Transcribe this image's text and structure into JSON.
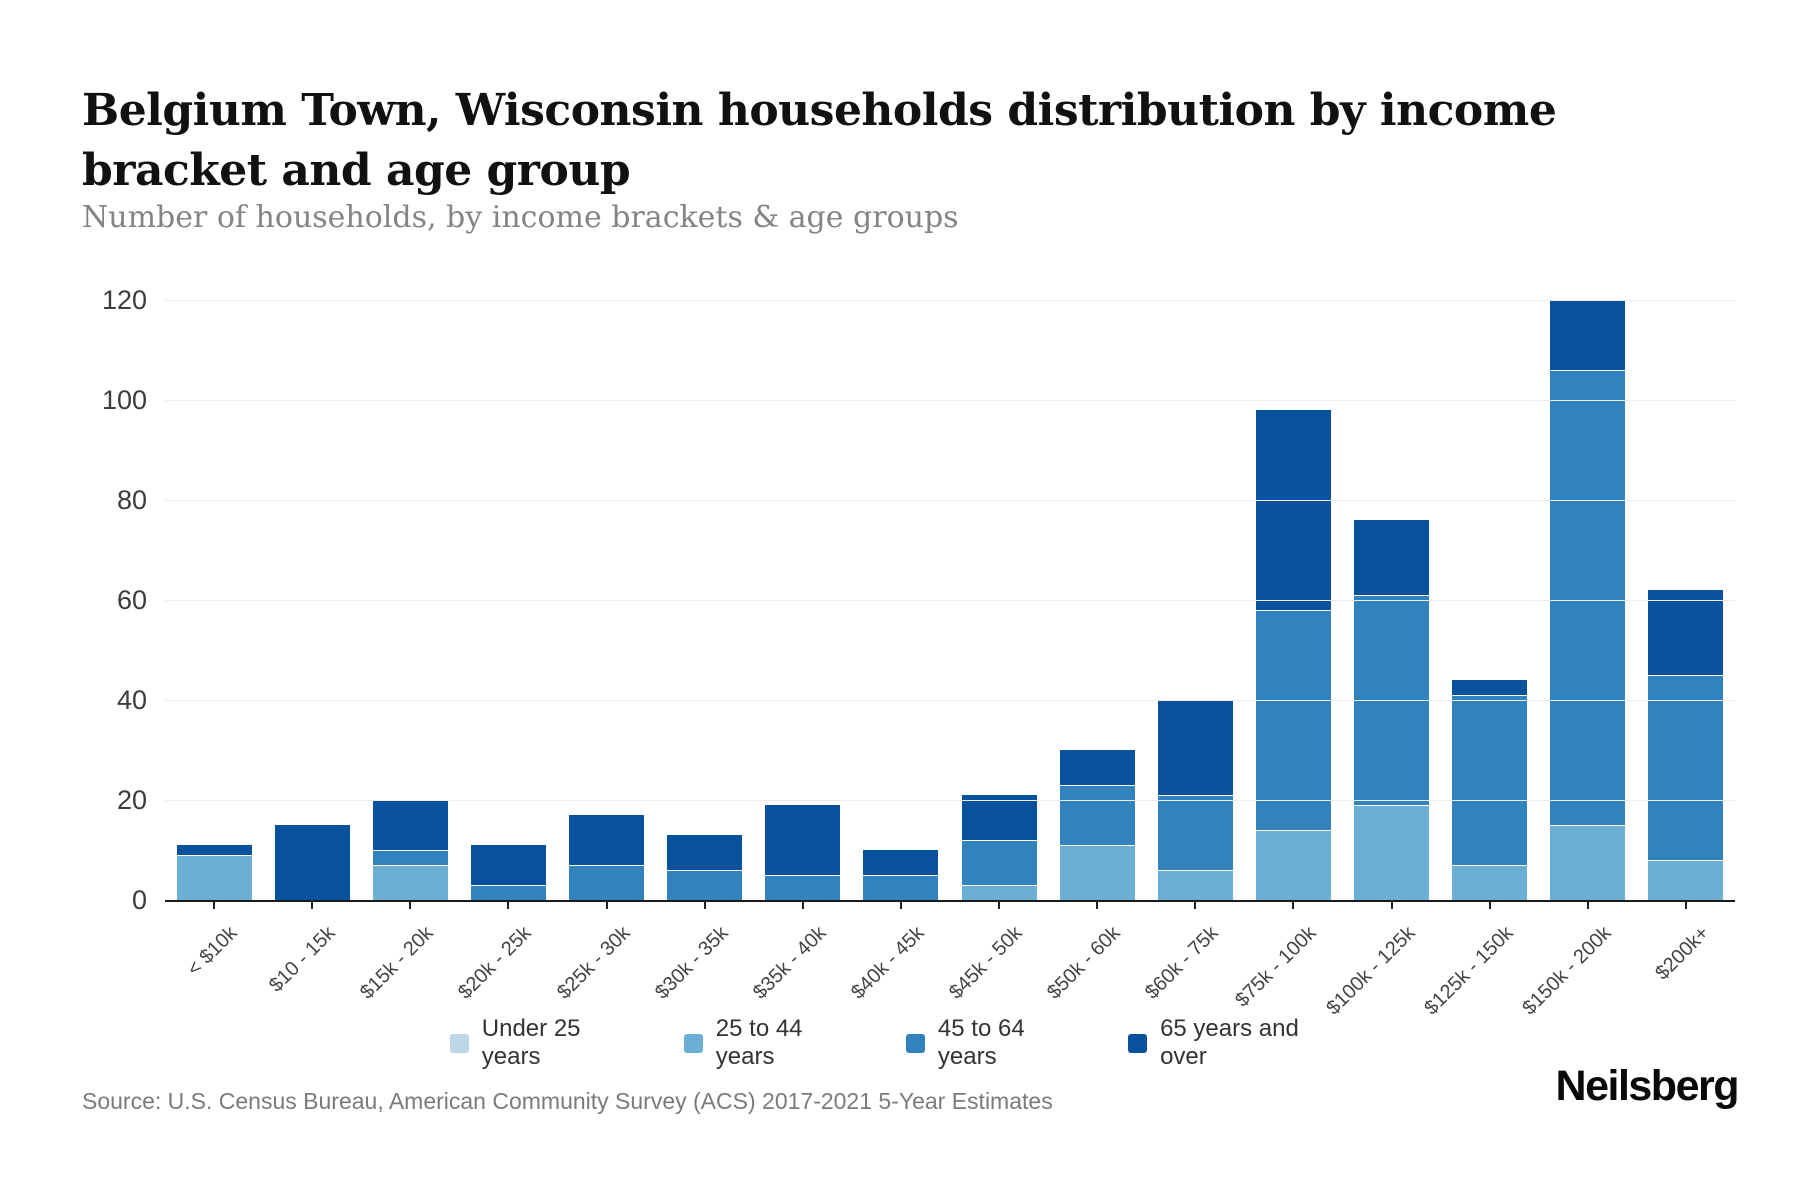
{
  "header": {
    "title": "Belgium Town, Wisconsin households distribution by income bracket and age group",
    "subtitle": "Number of households, by income brackets & age groups"
  },
  "footer": {
    "source": "Source: U.S. Census Bureau, American Community Survey (ACS) 2017-2021 5-Year Estimates",
    "brand": "Neilsberg"
  },
  "colors": {
    "axis_line": "#1a1a1a",
    "gridline": "#ededed",
    "tick_label": "#3c3c3c"
  },
  "chart_data": {
    "type": "bar",
    "stacked": true,
    "grid": true,
    "legend_position": "bottom",
    "ylim": [
      0,
      120
    ],
    "yticks": [
      0,
      20,
      40,
      60,
      80,
      100,
      120
    ],
    "categories": [
      "< $10k",
      "$10 - 15k",
      "$15k - 20k",
      "$20k - 25k",
      "$25k - 30k",
      "$30k - 35k",
      "$35k - 40k",
      "$40k - 45k",
      "$45k - 50k",
      "$50k - 60k",
      "$60k - 75k",
      "$75k - 100k",
      "$100k - 125k",
      "$125k - 150k",
      "$150k - 200k",
      "$200k+"
    ],
    "series": [
      {
        "name": "Under 25 years",
        "color": "#bdd7e7",
        "values": [
          0,
          0,
          0,
          0,
          0,
          0,
          0,
          0,
          0,
          0,
          0,
          0,
          0,
          0,
          0,
          0
        ]
      },
      {
        "name": "25 to 44 years",
        "color": "#6baed6",
        "values": [
          9,
          0,
          7,
          0,
          0,
          0,
          0,
          0,
          3,
          11,
          6,
          14,
          19,
          7,
          15,
          8
        ]
      },
      {
        "name": "45 to 64 years",
        "color": "#3182bd",
        "values": [
          0,
          0,
          3,
          3,
          7,
          6,
          5,
          5,
          9,
          12,
          15,
          44,
          42,
          34,
          91,
          37
        ]
      },
      {
        "name": "65 years and over",
        "color": "#08519c",
        "values": [
          2,
          15,
          10,
          8,
          10,
          7,
          14,
          5,
          9,
          7,
          19,
          40,
          15,
          3,
          14,
          17
        ]
      }
    ],
    "totals": [
      11,
      15,
      20,
      11,
      17,
      13,
      19,
      10,
      21,
      30,
      40,
      98,
      76,
      44,
      120,
      62
    ]
  }
}
